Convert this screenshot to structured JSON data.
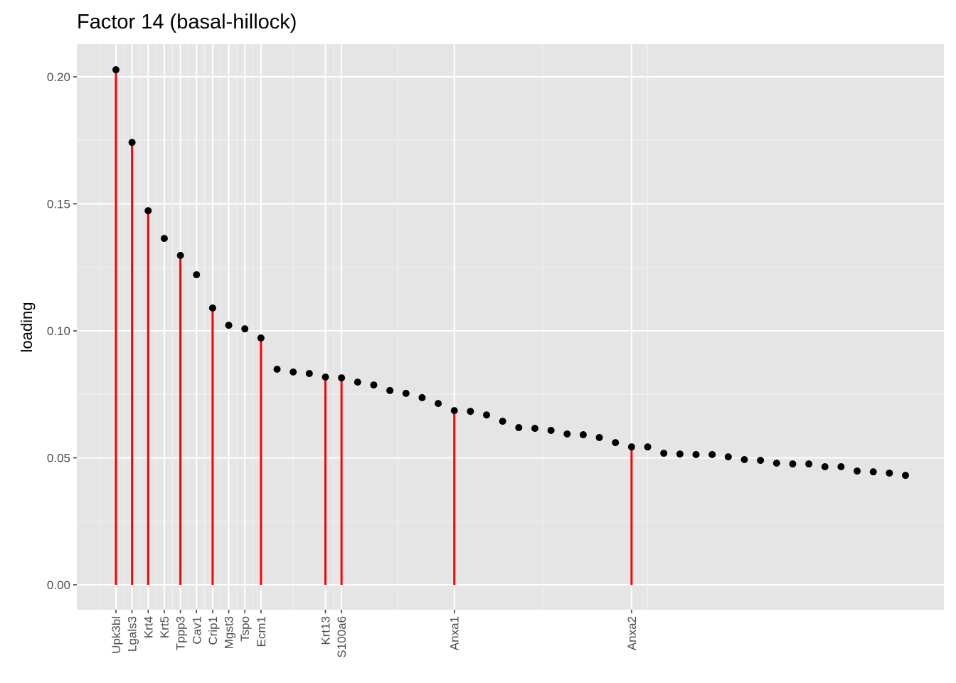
{
  "chart_data": {
    "type": "lollipop",
    "title": "Factor 14 (basal-hillock)",
    "y_label": "loading",
    "categories": [
      "Upk3bl",
      "Lgals3",
      "Krt4",
      "Krt5",
      "Tppp3",
      "Cav1",
      "Crip1",
      "Mgst3",
      "Tspo",
      "Ecm1",
      null,
      null,
      null,
      "Krt13",
      "S100a6",
      null,
      null,
      null,
      null,
      null,
      null,
      "Anxa1",
      null,
      null,
      null,
      null,
      null,
      null,
      null,
      null,
      null,
      null,
      "Anxa2",
      null,
      null,
      null,
      null,
      null,
      null,
      null,
      null,
      null,
      null,
      null,
      null,
      null,
      null,
      null,
      null,
      null
    ],
    "values": [
      0.2028,
      0.1742,
      0.1473,
      0.1364,
      0.1297,
      0.1221,
      0.109,
      0.1022,
      0.1008,
      0.0972,
      0.0849,
      0.0838,
      0.0832,
      0.0818,
      0.0815,
      0.0798,
      0.0787,
      0.0765,
      0.0754,
      0.0737,
      0.0714,
      0.0686,
      0.0683,
      0.0669,
      0.0644,
      0.0619,
      0.0616,
      0.0608,
      0.0594,
      0.0591,
      0.058,
      0.056,
      0.0543,
      0.0543,
      0.0518,
      0.0515,
      0.0513,
      0.0513,
      0.0504,
      0.0493,
      0.049,
      0.0479,
      0.0476,
      0.0476,
      0.0465,
      0.0465,
      0.0448,
      0.0445,
      0.044,
      0.0431
    ],
    "highlight": [
      true,
      true,
      true,
      false,
      true,
      false,
      true,
      false,
      false,
      true,
      false,
      false,
      false,
      true,
      true,
      false,
      false,
      false,
      false,
      false,
      false,
      true,
      false,
      false,
      false,
      false,
      false,
      false,
      false,
      false,
      false,
      false,
      true,
      false,
      false,
      false,
      false,
      false,
      false,
      false,
      false,
      false,
      false,
      false,
      false,
      false,
      false,
      false,
      false,
      false
    ],
    "color": "#000000",
    "stem_color": "#ff0000",
    "ylim": [
      -0.0098,
      0.2129
    ],
    "yticks": [
      {
        "value": 0,
        "label": "0.00"
      },
      {
        "value": 0.05,
        "label": "0.05"
      },
      {
        "value": 0.1,
        "label": "0.10"
      },
      {
        "value": 0.15,
        "label": "0.15"
      },
      {
        "value": 0.2,
        "label": "0.20"
      }
    ],
    "grid": true
  }
}
